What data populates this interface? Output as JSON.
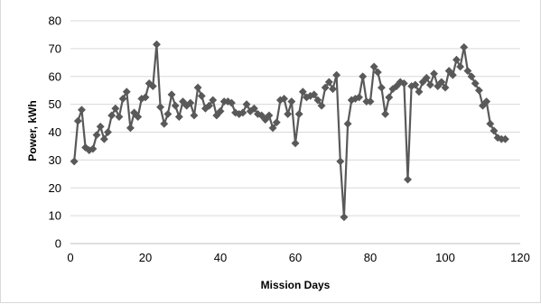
{
  "chart_data": {
    "type": "line",
    "title": "",
    "xlabel": "Mission Days",
    "ylabel": "Power, kWh",
    "xlim": [
      0,
      120
    ],
    "ylim": [
      0,
      80
    ],
    "xticks": [
      0,
      20,
      40,
      60,
      80,
      100,
      120
    ],
    "yticks": [
      0,
      10,
      20,
      30,
      40,
      50,
      60,
      70,
      80
    ],
    "grid": "horizontal",
    "legend": "none",
    "colors": {
      "series": "#595959",
      "grid": "#d9d9d9",
      "axis": "#bfbfbf"
    },
    "marker": "diamond",
    "series": [
      {
        "x": [
          1,
          2,
          3,
          4,
          5,
          6,
          7,
          8,
          9,
          10,
          11,
          12,
          13,
          14,
          15,
          16,
          17,
          18,
          19,
          20,
          21,
          22,
          23,
          24,
          25,
          26,
          27,
          28,
          29,
          30,
          31,
          32,
          33,
          34,
          35,
          36,
          37,
          38,
          39,
          40,
          41,
          42,
          43,
          44,
          45,
          46,
          47,
          48,
          49,
          50,
          51,
          52,
          53,
          54,
          55,
          56,
          57,
          58,
          59,
          60,
          61,
          62,
          63,
          64,
          65,
          66,
          67,
          68,
          69,
          70,
          71,
          72,
          73,
          74,
          75,
          76,
          77,
          78,
          79,
          80,
          81,
          82,
          83,
          84,
          85,
          86,
          87,
          88,
          89,
          90,
          91,
          92,
          93,
          94,
          95,
          96,
          97,
          98,
          99,
          100,
          101,
          102,
          103,
          104,
          105,
          106,
          107,
          108,
          109,
          110,
          111,
          112,
          113,
          114,
          115,
          116
        ],
        "values": [
          29.5,
          44,
          48,
          34.5,
          33.5,
          34,
          39,
          42,
          37.5,
          40,
          46,
          48.5,
          45.5,
          52,
          54.5,
          41.5,
          47,
          45.5,
          52,
          52.5,
          57.5,
          56.5,
          71.5,
          49,
          43,
          46.5,
          53.5,
          49.5,
          45.5,
          51,
          49.5,
          50.5,
          46,
          56,
          53,
          48.5,
          49.5,
          51.5,
          46,
          47.5,
          51,
          51,
          50.5,
          47,
          46.5,
          47,
          50,
          47.5,
          48.5,
          46.5,
          46,
          44.5,
          46,
          41.5,
          43.5,
          51.5,
          52,
          46.5,
          51,
          36,
          46.5,
          54.5,
          52.5,
          53,
          53.5,
          51.5,
          49.5,
          56,
          58,
          55.5,
          60.5,
          29.5,
          9.5,
          43,
          51.5,
          52,
          52.5,
          60,
          51,
          51,
          63.5,
          61.5,
          56,
          46.5,
          52.5,
          55.5,
          56.5,
          58,
          57.5,
          23,
          56.5,
          57,
          54.5,
          58,
          59.5,
          57,
          61,
          56.5,
          58,
          56,
          62,
          60.5,
          66,
          63.5,
          70.5,
          62,
          60,
          57.5,
          55,
          49.5,
          51,
          43,
          40.5,
          38,
          37.5,
          37.5
        ]
      }
    ]
  }
}
